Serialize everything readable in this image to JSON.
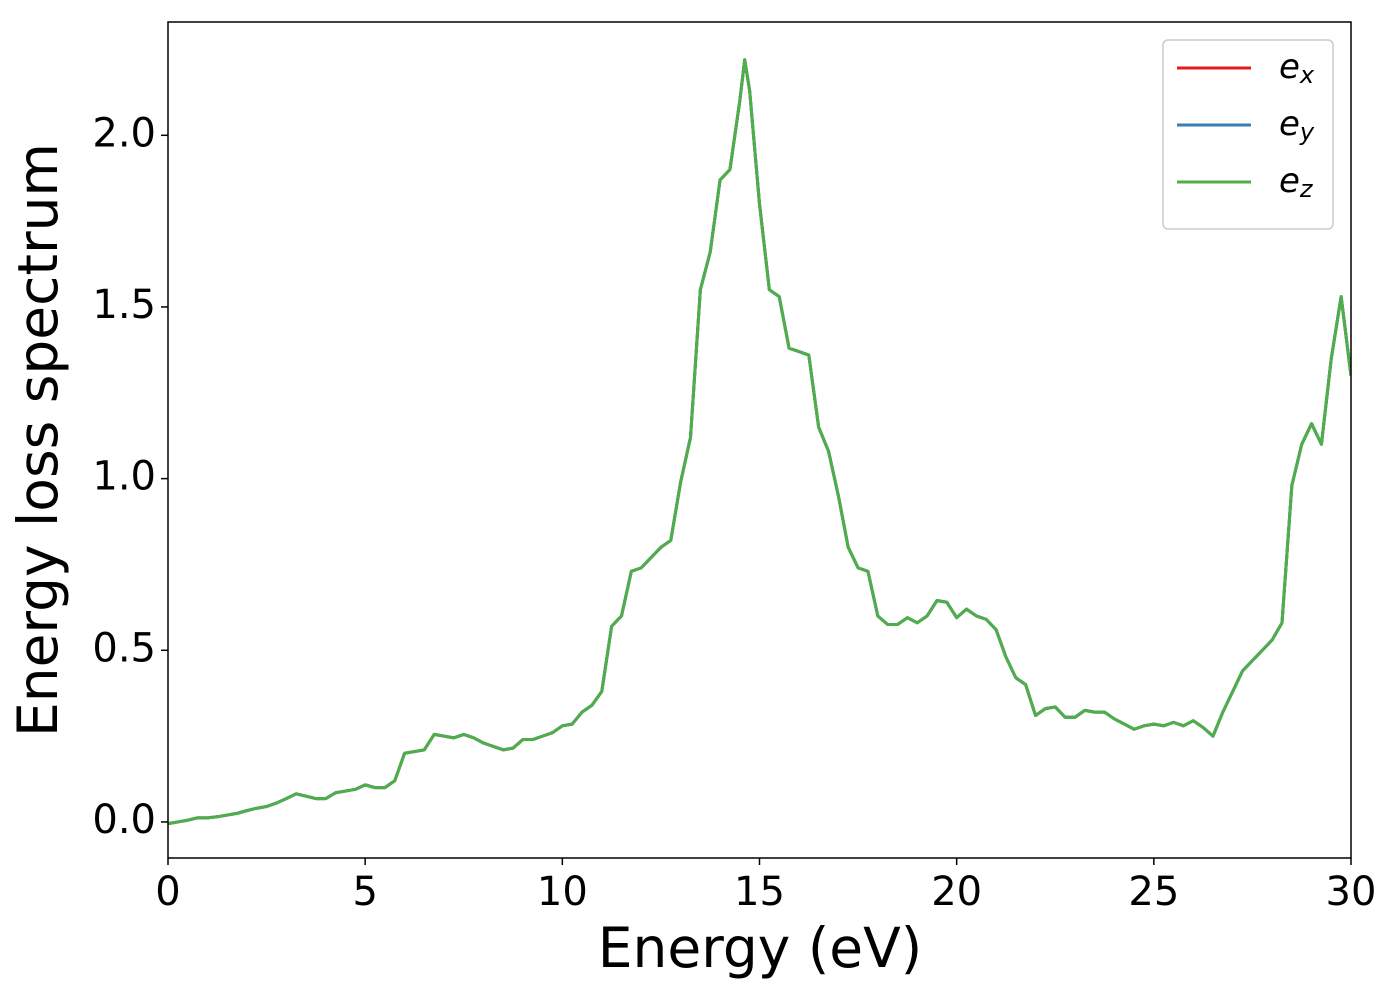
{
  "chart_data": {
    "type": "line",
    "xlabel": "Energy (eV)",
    "ylabel": "Energy loss spectrum",
    "x": [
      0,
      0.25,
      0.5,
      0.75,
      1,
      1.25,
      1.5,
      1.75,
      2,
      2.25,
      2.5,
      2.75,
      3,
      3.25,
      3.5,
      3.75,
      4,
      4.25,
      4.5,
      4.75,
      5,
      5.25,
      5.5,
      5.75,
      6,
      6.25,
      6.5,
      6.75,
      7,
      7.25,
      7.5,
      7.75,
      8,
      8.25,
      8.5,
      8.75,
      9,
      9.25,
      9.5,
      9.75,
      10,
      10.25,
      10.5,
      10.75,
      11,
      11.25,
      11.5,
      11.75,
      12,
      12.25,
      12.5,
      12.75,
      13,
      13.25,
      13.5,
      13.75,
      14,
      14.25,
      14.5,
      14.625,
      14.75,
      15,
      15.25,
      15.5,
      15.75,
      16,
      16.25,
      16.5,
      16.75,
      17,
      17.25,
      17.5,
      17.75,
      18,
      18.25,
      18.5,
      18.75,
      19,
      19.25,
      19.5,
      19.75,
      20,
      20.25,
      20.5,
      20.75,
      21,
      21.25,
      21.5,
      21.75,
      22,
      22.25,
      22.5,
      22.75,
      23,
      23.25,
      23.5,
      23.75,
      24,
      24.25,
      24.5,
      24.75,
      25,
      25.25,
      25.5,
      25.75,
      26,
      26.25,
      26.5,
      26.75,
      27,
      27.25,
      27.5,
      27.75,
      28,
      28.25,
      28.5,
      28.75,
      29,
      29.25,
      29.5,
      29.75,
      30
    ],
    "series": [
      {
        "name": "ex",
        "color": "#e41a1c",
        "values": [
          -0.005,
          0,
          0.005,
          0.012,
          0.012,
          0.015,
          0.02,
          0.025,
          0.033,
          0.04,
          0.045,
          0.055,
          0.068,
          0.082,
          0.075,
          0.068,
          0.068,
          0.085,
          0.09,
          0.095,
          0.108,
          0.1,
          0.1,
          0.12,
          0.2,
          0.205,
          0.21,
          0.255,
          0.25,
          0.245,
          0.255,
          0.245,
          0.23,
          0.22,
          0.21,
          0.215,
          0.24,
          0.24,
          0.25,
          0.26,
          0.28,
          0.285,
          0.32,
          0.34,
          0.38,
          0.57,
          0.6,
          0.73,
          0.74,
          0.77,
          0.8,
          0.82,
          0.99,
          1.12,
          1.55,
          1.66,
          1.87,
          1.9,
          2.1,
          2.22,
          2.13,
          1.8,
          1.55,
          1.53,
          1.38,
          1.37,
          1.36,
          1.15,
          1.08,
          0.95,
          0.8,
          0.74,
          0.73,
          0.6,
          0.575,
          0.575,
          0.595,
          0.58,
          0.6,
          0.645,
          0.64,
          0.595,
          0.62,
          0.6,
          0.59,
          0.56,
          0.48,
          0.42,
          0.4,
          0.31,
          0.33,
          0.335,
          0.305,
          0.305,
          0.325,
          0.32,
          0.32,
          0.3,
          0.285,
          0.27,
          0.28,
          0.285,
          0.28,
          0.29,
          0.28,
          0.295,
          0.275,
          0.25,
          0.32,
          0.38,
          0.44,
          0.47,
          0.5,
          0.53,
          0.58,
          0.98,
          1.1,
          1.16,
          1.1,
          1.35,
          1.53,
          1.3
        ]
      },
      {
        "name": "ey",
        "color": "#377eb8",
        "values": [
          -0.005,
          0,
          0.005,
          0.012,
          0.012,
          0.015,
          0.02,
          0.025,
          0.033,
          0.04,
          0.045,
          0.055,
          0.068,
          0.082,
          0.075,
          0.068,
          0.068,
          0.085,
          0.09,
          0.095,
          0.108,
          0.1,
          0.1,
          0.12,
          0.2,
          0.205,
          0.21,
          0.255,
          0.25,
          0.245,
          0.255,
          0.245,
          0.23,
          0.22,
          0.21,
          0.215,
          0.24,
          0.24,
          0.25,
          0.26,
          0.28,
          0.285,
          0.32,
          0.34,
          0.38,
          0.57,
          0.6,
          0.73,
          0.74,
          0.77,
          0.8,
          0.82,
          0.99,
          1.12,
          1.55,
          1.66,
          1.87,
          1.9,
          2.1,
          2.22,
          2.13,
          1.8,
          1.55,
          1.53,
          1.38,
          1.37,
          1.36,
          1.15,
          1.08,
          0.95,
          0.8,
          0.74,
          0.73,
          0.6,
          0.575,
          0.575,
          0.595,
          0.58,
          0.6,
          0.645,
          0.64,
          0.595,
          0.62,
          0.6,
          0.59,
          0.56,
          0.48,
          0.42,
          0.4,
          0.31,
          0.33,
          0.335,
          0.305,
          0.305,
          0.325,
          0.32,
          0.32,
          0.3,
          0.285,
          0.27,
          0.28,
          0.285,
          0.28,
          0.29,
          0.28,
          0.295,
          0.275,
          0.25,
          0.32,
          0.38,
          0.44,
          0.47,
          0.5,
          0.53,
          0.58,
          0.98,
          1.1,
          1.16,
          1.1,
          1.35,
          1.53,
          1.3
        ]
      },
      {
        "name": "ez",
        "color": "#4daf4a",
        "values": [
          -0.005,
          0,
          0.005,
          0.012,
          0.012,
          0.015,
          0.02,
          0.025,
          0.033,
          0.04,
          0.045,
          0.055,
          0.068,
          0.082,
          0.075,
          0.068,
          0.068,
          0.085,
          0.09,
          0.095,
          0.108,
          0.1,
          0.1,
          0.12,
          0.2,
          0.205,
          0.21,
          0.255,
          0.25,
          0.245,
          0.255,
          0.245,
          0.23,
          0.22,
          0.21,
          0.215,
          0.24,
          0.24,
          0.25,
          0.26,
          0.28,
          0.285,
          0.32,
          0.34,
          0.38,
          0.57,
          0.6,
          0.73,
          0.74,
          0.77,
          0.8,
          0.82,
          0.99,
          1.12,
          1.55,
          1.66,
          1.87,
          1.9,
          2.1,
          2.22,
          2.13,
          1.8,
          1.55,
          1.53,
          1.38,
          1.37,
          1.36,
          1.15,
          1.08,
          0.95,
          0.8,
          0.74,
          0.73,
          0.6,
          0.575,
          0.575,
          0.595,
          0.58,
          0.6,
          0.645,
          0.64,
          0.595,
          0.62,
          0.6,
          0.59,
          0.56,
          0.48,
          0.42,
          0.4,
          0.31,
          0.33,
          0.335,
          0.305,
          0.305,
          0.325,
          0.32,
          0.32,
          0.3,
          0.285,
          0.27,
          0.28,
          0.285,
          0.28,
          0.29,
          0.28,
          0.295,
          0.275,
          0.25,
          0.32,
          0.38,
          0.44,
          0.47,
          0.5,
          0.53,
          0.58,
          0.98,
          1.1,
          1.16,
          1.1,
          1.35,
          1.53,
          1.3
        ]
      }
    ],
    "xlim": [
      0,
      30
    ],
    "xticks": [
      0,
      5,
      10,
      15,
      20,
      25,
      30
    ],
    "ylim": [
      -0.105,
      2.33
    ],
    "yticks": [
      {
        "value": 0,
        "label": "0.0"
      },
      0.5,
      {
        "value": 1,
        "label": "1.0"
      },
      1.5,
      {
        "value": 2,
        "label": "2.0"
      }
    ],
    "legend": "upper right",
    "grid": false
  }
}
